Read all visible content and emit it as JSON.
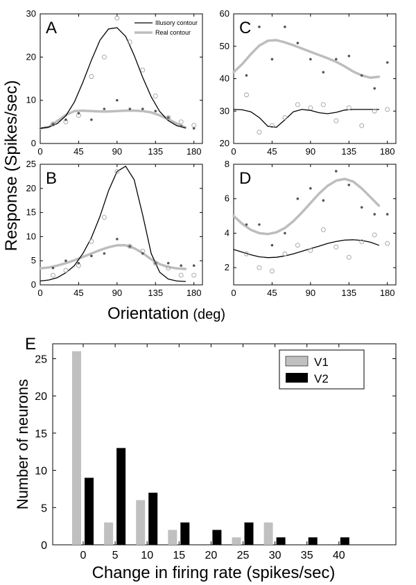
{
  "colors": {
    "illusory": "#000000",
    "real": "#bdbdbd",
    "v1": "#c0c0c0",
    "v2": "#000000",
    "axis": "#000000"
  },
  "shared": {
    "ylabel": "Response (Spikes/sec)",
    "xlabel_main": "Orientation",
    "xlabel_unit": "(deg)"
  },
  "chart_data": [
    {
      "id": "A",
      "type": "line",
      "title": "A",
      "xlim": [
        0,
        190
      ],
      "ylim": [
        0,
        30
      ],
      "xticks": [
        0,
        45,
        90,
        135,
        180
      ],
      "yticks": [
        0,
        10,
        20,
        30
      ],
      "legend": {
        "position": "top-right",
        "entries": [
          "Illusory contour",
          "Real contour"
        ]
      },
      "series": [
        {
          "name": "Illusory contour",
          "style": "thin-black-line",
          "x": [
            0,
            10,
            20,
            30,
            40,
            50,
            60,
            70,
            80,
            90,
            100,
            110,
            120,
            130,
            140,
            150,
            160,
            170
          ],
          "y": [
            3.5,
            3.8,
            4.6,
            6.4,
            9.6,
            14.2,
            19.3,
            23.9,
            26.5,
            26.8,
            24.8,
            20.4,
            15.3,
            10.8,
            7.4,
            5.3,
            4.1,
            3.6
          ]
        },
        {
          "name": "Real contour",
          "style": "thick-gray-line",
          "x": [
            0,
            10,
            20,
            30,
            40,
            50,
            60,
            70,
            80,
            90,
            100,
            110,
            120,
            130,
            140,
            150,
            160,
            170
          ],
          "y": [
            3.5,
            3.8,
            5.2,
            6.6,
            7.5,
            7.6,
            7.5,
            7.4,
            7.4,
            7.5,
            7.6,
            7.6,
            7.5,
            7.2,
            6.5,
            5.6,
            4.6,
            3.7
          ]
        },
        {
          "name": "Illusory data",
          "style": "open-circles",
          "x": [
            15,
            30,
            45,
            60,
            75,
            90,
            105,
            120,
            135,
            150,
            165,
            180
          ],
          "y": [
            4.5,
            5,
            6.5,
            15.5,
            20,
            29,
            23.5,
            17,
            11,
            6,
            5,
            4.2
          ]
        },
        {
          "name": "Real data",
          "style": "filled-dots",
          "x": [
            15,
            30,
            45,
            60,
            75,
            90,
            105,
            120,
            135,
            150,
            165,
            180
          ],
          "y": [
            4.5,
            5.5,
            7,
            5.5,
            8,
            10,
            8,
            8,
            7.5,
            6,
            4,
            3.5
          ]
        }
      ]
    },
    {
      "id": "B",
      "type": "line",
      "title": "B",
      "xlim": [
        0,
        190
      ],
      "ylim": [
        0,
        25
      ],
      "xticks": [
        0,
        45,
        90,
        135,
        180
      ],
      "yticks": [
        0,
        5,
        10,
        15,
        20,
        25
      ],
      "series": [
        {
          "name": "Illusory contour",
          "style": "thin-black-line",
          "x": [
            0,
            10,
            20,
            30,
            40,
            50,
            60,
            70,
            80,
            90,
            100,
            110,
            120,
            130,
            140,
            150,
            160,
            170
          ],
          "y": [
            0.8,
            1.0,
            1.5,
            2.5,
            4.0,
            6.5,
            9.8,
            14.2,
            19.5,
            23.5,
            24.6,
            21.8,
            14.5,
            6.5,
            2.6,
            1.2,
            0.8,
            0.7
          ]
        },
        {
          "name": "Real contour",
          "style": "thick-gray-line",
          "x": [
            0,
            10,
            20,
            30,
            40,
            50,
            60,
            70,
            80,
            90,
            100,
            110,
            120,
            130,
            140,
            150,
            160,
            170
          ],
          "y": [
            3.4,
            3.6,
            4.0,
            4.5,
            5.1,
            5.8,
            6.5,
            7.2,
            7.8,
            8.2,
            8.2,
            7.6,
            6.6,
            5.3,
            4.3,
            3.7,
            3.4,
            3.3
          ]
        },
        {
          "name": "Illusory data",
          "style": "open-circles",
          "x": [
            15,
            30,
            45,
            60,
            75,
            90,
            105,
            120,
            135,
            150,
            165,
            180
          ],
          "y": [
            2,
            3,
            4,
            9,
            14,
            23.5,
            8,
            7,
            4.5,
            3.5,
            2,
            2
          ]
        },
        {
          "name": "Real data",
          "style": "filled-dots",
          "x": [
            15,
            30,
            45,
            60,
            75,
            90,
            105,
            120,
            135,
            150,
            165,
            180
          ],
          "y": [
            3.5,
            5,
            4.5,
            6,
            6.5,
            9.5,
            8,
            6.5,
            4.5,
            4.5,
            4,
            4
          ]
        }
      ]
    },
    {
      "id": "C",
      "type": "line",
      "title": "C",
      "xlim": [
        0,
        190
      ],
      "ylim": [
        20,
        60
      ],
      "xticks": [
        0,
        45,
        90,
        135,
        180
      ],
      "yticks": [
        20,
        30,
        40,
        50,
        60
      ],
      "series": [
        {
          "name": "Illusory contour",
          "style": "thin-black-line",
          "x": [
            0,
            10,
            20,
            30,
            40,
            50,
            60,
            70,
            80,
            90,
            100,
            110,
            120,
            130,
            140,
            150,
            160,
            170
          ],
          "y": [
            30.5,
            30.4,
            29.8,
            28,
            25.3,
            25,
            27.3,
            29.8,
            30.5,
            30.2,
            29.5,
            29.2,
            29.6,
            30.3,
            30.5,
            30.5,
            30.5,
            30.5
          ]
        },
        {
          "name": "Real contour",
          "style": "thick-gray-line",
          "x": [
            0,
            10,
            20,
            30,
            40,
            50,
            60,
            70,
            80,
            90,
            100,
            110,
            120,
            130,
            140,
            150,
            160,
            170
          ],
          "y": [
            42,
            44.5,
            47.5,
            50.2,
            51.7,
            51.9,
            51.2,
            50.3,
            49.3,
            48.3,
            47.3,
            46.3,
            45.2,
            43.8,
            42.2,
            41,
            40.3,
            40.6
          ]
        },
        {
          "name": "Illusory data",
          "style": "open-circles",
          "x": [
            15,
            30,
            45,
            60,
            75,
            90,
            105,
            120,
            135,
            150,
            165,
            180
          ],
          "y": [
            35,
            23.5,
            25.5,
            28,
            32,
            31,
            32,
            27,
            31,
            25.5,
            30,
            30.5
          ]
        },
        {
          "name": "Real data",
          "style": "filled-dots",
          "x": [
            15,
            30,
            45,
            60,
            75,
            90,
            105,
            120,
            135,
            150,
            165,
            180
          ],
          "y": [
            41,
            56,
            46,
            56,
            51,
            46,
            42,
            46,
            47,
            41,
            37,
            45
          ]
        }
      ]
    },
    {
      "id": "D",
      "type": "line",
      "title": "D",
      "xlim": [
        0,
        190
      ],
      "ylim": [
        1,
        8
      ],
      "xticks": [
        0,
        45,
        90,
        135,
        180
      ],
      "yticks": [
        2,
        4,
        6,
        8
      ],
      "series": [
        {
          "name": "Illusory contour",
          "style": "thin-black-line",
          "x": [
            0,
            10,
            20,
            30,
            40,
            50,
            60,
            70,
            80,
            90,
            100,
            110,
            120,
            130,
            140,
            150,
            160,
            170
          ],
          "y": [
            3.05,
            2.9,
            2.75,
            2.63,
            2.58,
            2.6,
            2.68,
            2.8,
            2.95,
            3.1,
            3.25,
            3.4,
            3.52,
            3.6,
            3.62,
            3.58,
            3.48,
            3.3
          ]
        },
        {
          "name": "Real contour",
          "style": "thick-gray-line",
          "x": [
            0,
            10,
            20,
            30,
            40,
            50,
            60,
            70,
            80,
            90,
            100,
            110,
            120,
            130,
            140,
            150,
            160,
            170
          ],
          "y": [
            5.0,
            4.55,
            4.2,
            4.0,
            3.95,
            4.05,
            4.3,
            4.7,
            5.2,
            5.75,
            6.3,
            6.75,
            7.05,
            7.15,
            7.0,
            6.6,
            6.1,
            5.6
          ]
        },
        {
          "name": "Illusory data",
          "style": "open-circles",
          "x": [
            15,
            30,
            45,
            60,
            75,
            90,
            105,
            120,
            135,
            150,
            165,
            180
          ],
          "y": [
            2.8,
            2,
            1.8,
            2.8,
            3.3,
            3,
            4.2,
            3.2,
            2.6,
            3.5,
            3.9,
            3.4
          ]
        },
        {
          "name": "Real data",
          "style": "filled-dots",
          "x": [
            15,
            30,
            45,
            60,
            75,
            90,
            105,
            120,
            135,
            150,
            165,
            180
          ],
          "y": [
            4.5,
            4.5,
            3.3,
            4,
            6,
            6.6,
            5.9,
            7.6,
            6.8,
            5.5,
            5.1,
            5.1
          ]
        }
      ]
    },
    {
      "id": "E",
      "type": "bar",
      "title": "E",
      "xlabel": "Change in firing rate (spikes/sec)",
      "ylabel": "Number of neurons",
      "categories": [
        "0",
        "5",
        "10",
        "15",
        "20",
        "25",
        "30",
        "35",
        "40"
      ],
      "ylim": [
        0,
        27
      ],
      "yticks": [
        0,
        5,
        10,
        15,
        20,
        25
      ],
      "legend": {
        "position": "top-right",
        "entries": [
          "V1",
          "V2"
        ]
      },
      "series": [
        {
          "name": "V1",
          "values": [
            26,
            3,
            6,
            2,
            0,
            1,
            3,
            0,
            0
          ]
        },
        {
          "name": "V2",
          "values": [
            9,
            13,
            7,
            3,
            2,
            3,
            1,
            1,
            1
          ]
        }
      ]
    }
  ]
}
